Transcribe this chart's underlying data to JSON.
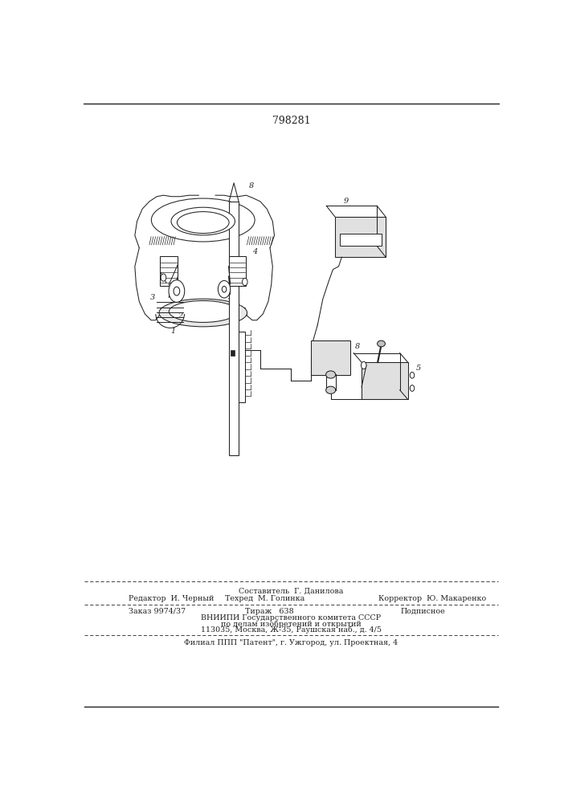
{
  "patent_number": "798281",
  "background_color": "#ffffff",
  "line_color": "#222222",
  "text_color": "#222222",
  "footer": {
    "editor": "Редактор  И. Черный",
    "composer_label": "Составитель  Г. Данилова",
    "techred_label": "Техред  М. Голинка",
    "corrector_label": "Корректор  Ю. Макаренко",
    "order": "Заказ 9974/37",
    "tirazh": "Тираж   638",
    "podpisnoe": "Подписное",
    "org1": "ВНИИПИ Государственного комитета СССР",
    "org2": "по делам изобретений и открытий",
    "org3": "113035, Москва, Ж-35, Раушская наб., д. 4/5",
    "filial": "Филиал ППП \"Патент\", г. Ужгород, ул. Проектная, 4"
  },
  "figsize": [
    7.07,
    10.0
  ],
  "dpi": 100
}
